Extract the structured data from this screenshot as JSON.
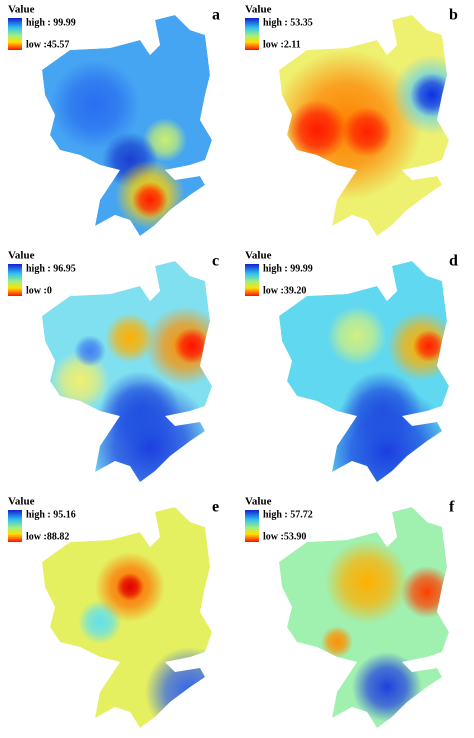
{
  "panels": [
    {
      "label": "a",
      "legend_title": "Value",
      "high": "high : 99.99",
      "low": "low :45.57"
    },
    {
      "label": "b",
      "legend_title": "Value",
      "high": "high : 53.35",
      "low": "low :2.11"
    },
    {
      "label": "c",
      "legend_title": "Value",
      "high": "high : 96.95",
      "low": "low :0"
    },
    {
      "label": "d",
      "legend_title": "Value",
      "high": "high : 99.99",
      "low": "low :39.20"
    },
    {
      "label": "e",
      "legend_title": "Value",
      "high": "high : 95.16",
      "low": "low :88.82"
    },
    {
      "label": "f",
      "legend_title": "Value",
      "high": "high : 57.72",
      "low": "low :53.90"
    }
  ]
}
